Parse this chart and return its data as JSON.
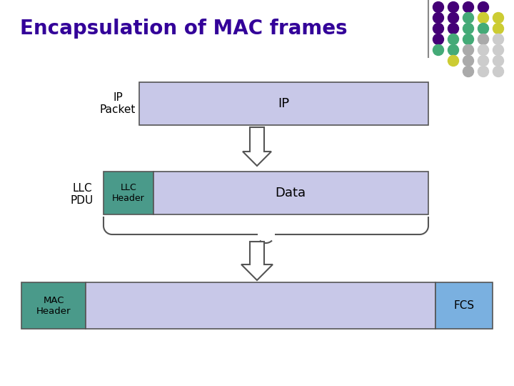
{
  "title": "Encapsulation of MAC frames",
  "title_color": "#330099",
  "title_fontsize": 20,
  "bg_color": "#ffffff",
  "light_purple": "#c8c8e8",
  "teal": "#4a9a8a",
  "light_blue": "#7ab0e0",
  "box_edge": "#555555",
  "row1_label": "IP\nPacket",
  "row2_label": "LLC\nPDU",
  "row3_label": "MAC\nHeader",
  "ip_text": "IP",
  "llc_header_text": "LLC\nHeader",
  "data_text": "Data",
  "fcs_text": "FCS",
  "dot_colors": [
    [
      "#440088",
      "#440088",
      "#440088"
    ],
    [
      "#440088",
      "#440088",
      "#44aa88",
      "#cccc44"
    ],
    [
      "#440088",
      "#440088",
      "#44aa88",
      "#44aa88",
      "#cccc44"
    ],
    [
      "#440088",
      "#44aa88",
      "#44aa88",
      "#ccccaa",
      "#cccccc"
    ],
    [
      "#44aa88",
      "#44aa88",
      "#ccccaa",
      "#cccccc",
      "#cccccc"
    ],
    [
      "#cccc44",
      "#ccccaa",
      "#cccccc",
      "#cccccc"
    ],
    [
      "#cccccc",
      "#cccccc",
      "#cccccc"
    ]
  ],
  "dot_colors2": [
    [
      "#440077",
      "#440077",
      "#440077",
      "#440077"
    ],
    [
      "#440077",
      "#440077",
      "#440077",
      "#44aa88",
      "#cccc33"
    ],
    [
      "#440077",
      "#440077",
      "#44aa88",
      "#44aa88",
      "#cccc33"
    ],
    [
      "#440077",
      "#44aa88",
      "#44aa88",
      "#aaaaaa",
      "#cccccc"
    ],
    [
      "#44aa88",
      "#44aa88",
      "#aaaaaa",
      "#cccccc",
      "#cccccc"
    ],
    [
      "#cccc33",
      "#aaaaaa",
      "#cccccc",
      "#cccccc"
    ],
    [
      "#aaaaaa",
      "#cccccc",
      "#cccccc"
    ]
  ]
}
